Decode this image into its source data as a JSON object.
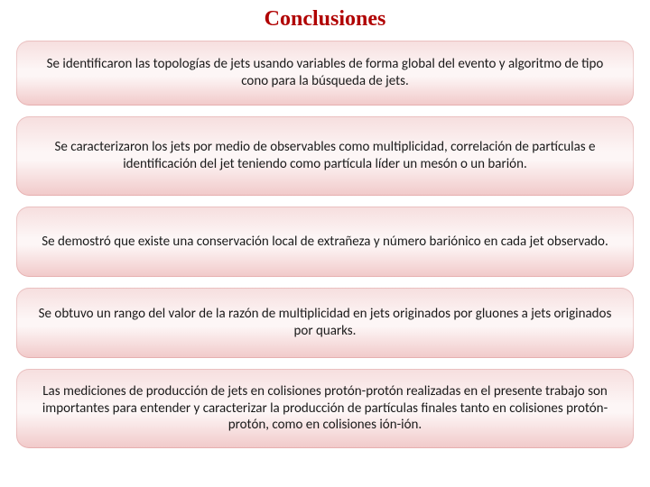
{
  "title": "Conclusiones",
  "title_color": "#b00000",
  "title_fontsize": 24,
  "background_color": "#ffffff",
  "box_style": {
    "border_radius": 14,
    "fontsize": 15,
    "font_family": "Calibri, Arial, sans-serif",
    "text_color": "#1a1a1a",
    "gradient_top": "#f6dede",
    "gradient_mid": "#fdf6f6",
    "gradient_bottom": "#f1c9c9"
  },
  "boxes": [
    {
      "text": "Se identificaron las topologías de jets usando variables de forma global del evento y algoritmo de tipo cono para la búsqueda de jets.",
      "height": 72
    },
    {
      "text": "Se caracterizaron los jets por medio de observables como multiplicidad, correlación de partículas e identificación del jet teniendo como partícula líder un mesón o un barión.",
      "height": 88
    },
    {
      "text": "Se demostró que existe una conservación local de extrañeza y número bariónico    en cada jet observado.",
      "height": 78
    },
    {
      "text": "Se obtuvo un rango del valor de la razón de multiplicidad en jets originados por gluones a jets originados por quarks.",
      "height": 78
    },
    {
      "text": "Las mediciones de producción de jets en colisiones protón-protón realizadas en el presente trabajo son importantes para entender y caracterizar la producción de partículas finales tanto en colisiones protón-protón, como en colisiones ión-ión.",
      "height": 88
    }
  ]
}
